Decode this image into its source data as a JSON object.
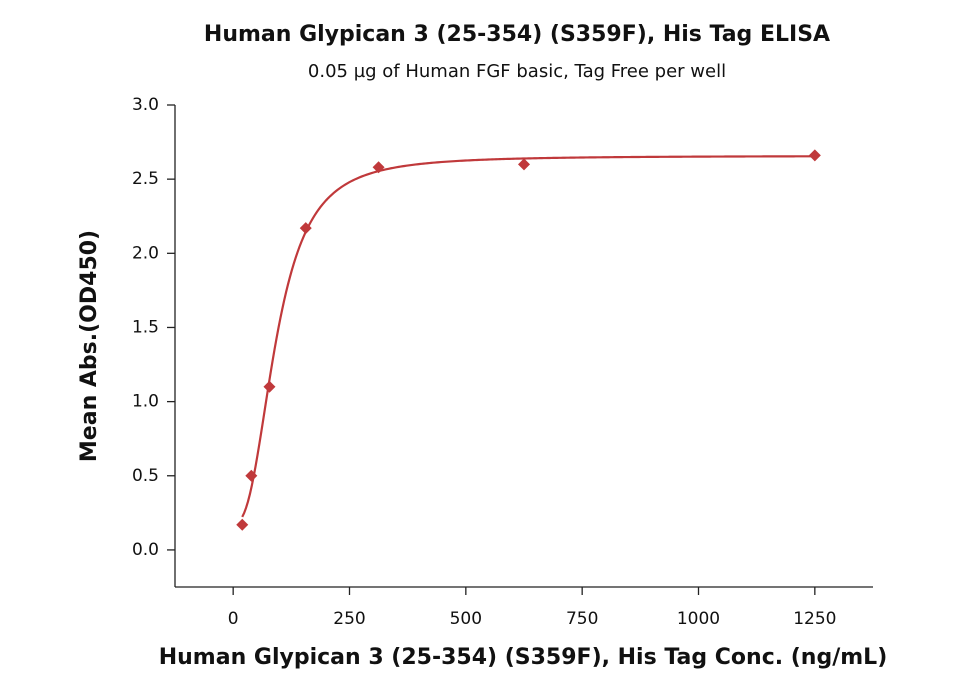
{
  "chart_data": {
    "type": "scatter",
    "title": "Human Glypican 3 (25-354) (S359F), His Tag ELISA",
    "subtitle": "0.05 µg of Human FGF basic, Tag Free per well",
    "x_label": "Human Glypican 3 (25-354) (S359F), His Tag Conc. (ng/mL)",
    "y_label": "Mean Abs.(OD450)",
    "x": [
      19.5,
      39,
      78,
      156,
      312.5,
      625,
      1250
    ],
    "values": [
      0.17,
      0.5,
      1.1,
      2.17,
      2.58,
      2.6,
      2.66
    ],
    "color": "#c0393b",
    "xlim": [
      -125,
      1375
    ],
    "xticks": [
      0,
      250,
      500,
      750,
      1000,
      1250
    ],
    "ylim": [
      -0.25,
      3.0
    ],
    "yticks": [
      {
        "value": 0,
        "label": "0.0"
      },
      {
        "value": 0.5,
        "label": "0.5"
      },
      {
        "value": 1,
        "label": "1.0"
      },
      {
        "value": 1.5,
        "label": "1.5"
      },
      {
        "value": 2,
        "label": "2.0"
      },
      {
        "value": 2.5,
        "label": "2.5"
      },
      {
        "value": 3,
        "label": "3.0"
      }
    ],
    "fit_curve": true
  }
}
